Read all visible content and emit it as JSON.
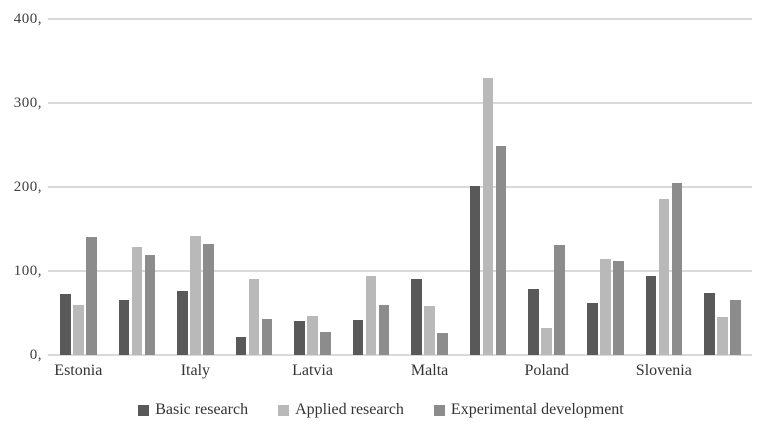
{
  "chart_data": {
    "type": "bar",
    "title": "",
    "groups": 12,
    "label_group_indices": [
      0,
      2,
      4,
      6,
      8,
      10
    ],
    "x_labels": [
      "Estonia",
      "Italy",
      "Latvia",
      "Malta",
      "Poland",
      "Slovenia"
    ],
    "y_axis": {
      "min": 0,
      "max": 400,
      "step": 100,
      "tick_values": [
        0,
        100,
        200,
        300,
        400
      ],
      "tick_labels": [
        "0,",
        "100,",
        "200,",
        "300,",
        "400,"
      ]
    },
    "series": [
      {
        "name": "Basic research",
        "color": "#595959",
        "values": [
          73,
          66,
          76,
          22,
          40,
          42,
          90,
          201,
          78,
          62,
          94,
          74
        ]
      },
      {
        "name": "Applied research",
        "color": "#b9b9b9",
        "values": [
          59,
          128,
          142,
          90,
          46,
          94,
          58,
          330,
          32,
          114,
          186,
          45
        ]
      },
      {
        "name": "Experimental development",
        "color": "#8c8c8c",
        "values": [
          140,
          119,
          132,
          43,
          27,
          60,
          26,
          249,
          131,
          112,
          205,
          66
        ]
      }
    ],
    "legend": {
      "position": "bottom"
    },
    "grid": {
      "horizontal": true,
      "vertical": false
    }
  },
  "colors": {
    "background": "#ffffff",
    "gridline": "#d9d9d9",
    "axis_tick_text": "#404040",
    "label_text": "#333333"
  }
}
